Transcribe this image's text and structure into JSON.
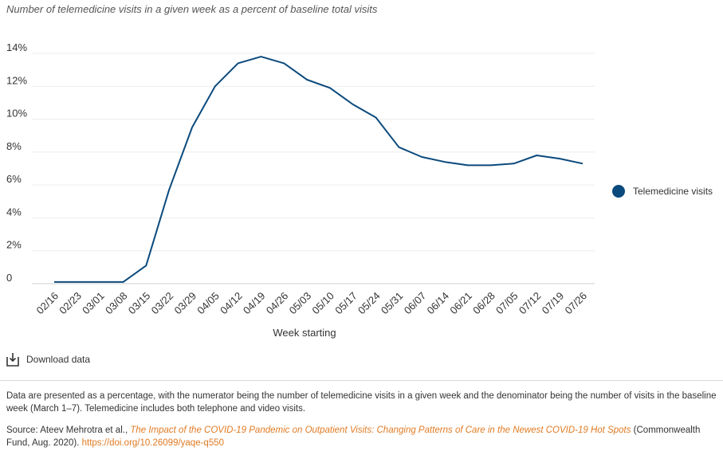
{
  "subtitle": "Number of telemedicine visits in a given week as a percent of baseline total visits",
  "chart_data": {
    "type": "line",
    "title": "",
    "xlabel": "Week starting",
    "ylabel": "",
    "ylim": [
      0,
      14
    ],
    "yticks": [
      "0",
      "2%",
      "4%",
      "6%",
      "8%",
      "10%",
      "12%",
      "14%"
    ],
    "ytick_values": [
      0,
      2,
      4,
      6,
      8,
      10,
      12,
      14
    ],
    "grid": true,
    "legend_position": "right",
    "categories": [
      "02/16",
      "02/23",
      "03/01",
      "03/08",
      "03/15",
      "03/22",
      "03/29",
      "04/05",
      "04/12",
      "04/19",
      "04/26",
      "05/03",
      "05/10",
      "05/17",
      "05/24",
      "05/31",
      "06/07",
      "06/14",
      "06/21",
      "06/28",
      "07/05",
      "07/12",
      "07/19",
      "07/26"
    ],
    "series": [
      {
        "name": "Telemedicine visits",
        "color": "#0b4a7d",
        "values": [
          0.1,
          0.1,
          0.1,
          0.1,
          1.1,
          5.7,
          9.5,
          12.0,
          13.4,
          13.8,
          13.4,
          12.4,
          11.9,
          10.9,
          10.1,
          8.3,
          7.7,
          7.4,
          7.2,
          7.2,
          7.3,
          7.8,
          7.6,
          7.3
        ]
      }
    ]
  },
  "download": {
    "label": "Download data",
    "icon": "download-icon"
  },
  "note": "Data are presented as a percentage, with the numerator being the number of telemedicine visits in a given week and the denominator being the number of visits in the baseline week (March 1–7). Telemedicine includes both telephone and video visits.",
  "source": {
    "prefix": "Source: Ateev Mehrotra et al., ",
    "title": "The Impact of the COVID-19 Pandemic on Outpatient Visits: Changing Patterns of Care in the Newest COVID-19 Hot Spots",
    "suffix": " (Commonwealth Fund, Aug. 2020). ",
    "link": "https://doi.org/10.26099/yaqe-q550"
  }
}
